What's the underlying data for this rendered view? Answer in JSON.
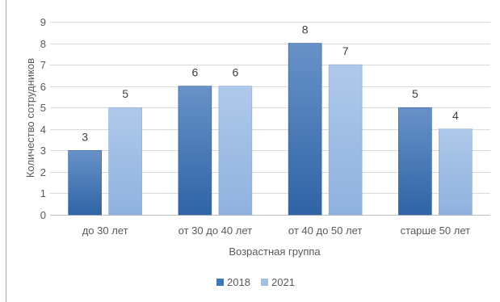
{
  "chart_data": {
    "type": "bar",
    "categories": [
      "до 30 лет",
      "от 30 до 40 лет",
      "от 40 до 50 лет",
      "старше 50 лет"
    ],
    "series": [
      {
        "name": "2018",
        "values": [
          3,
          6,
          8,
          5
        ],
        "color": "#3f76b3"
      },
      {
        "name": "2021",
        "values": [
          5,
          6,
          7,
          4
        ],
        "color": "#a1bfe3"
      }
    ],
    "xlabel": "Возрастная группа",
    "ylabel": "Количество сотрудников",
    "ylim": [
      0,
      9
    ],
    "yticks": [
      0,
      1,
      2,
      3,
      4,
      5,
      6,
      7,
      8,
      9
    ],
    "grid": true,
    "legend": "bottom",
    "data_labels": true
  }
}
